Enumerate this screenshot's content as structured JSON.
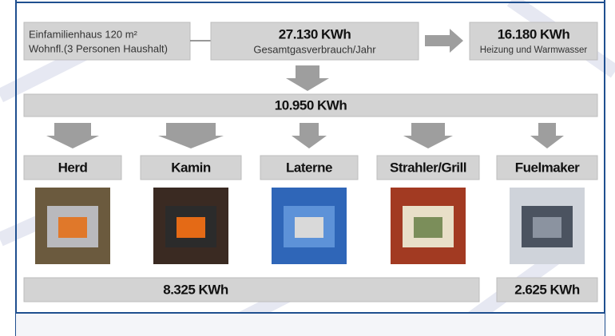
{
  "source": {
    "line1": "Einfamilienhaus 120 m²",
    "line2": "Wohnfl.(3 Personen Haushalt)"
  },
  "total": {
    "value": "27.130 KWh",
    "label": "Gesamtgasverbrauch/Jahr"
  },
  "heating": {
    "value": "16.180 KWh",
    "label": "Heizung und Warmwasser"
  },
  "remaining": "10.950 KWh",
  "uses": [
    "Herd",
    "Kamin",
    "Laterne",
    "Strahler/Grill",
    "Fuelmaker"
  ],
  "subtotals": [
    "8.325 KWh",
    "2.625 KWh"
  ]
}
